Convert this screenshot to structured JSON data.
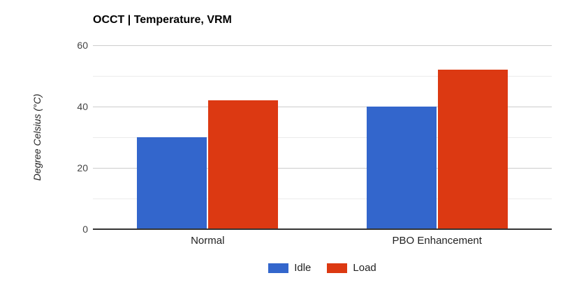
{
  "chart_data": {
    "type": "bar",
    "title": "OCCT | Temperature, VRM",
    "ylabel": "Degree Celsius (°C)",
    "categories": [
      "Normal",
      "PBO Enhancement"
    ],
    "series": [
      {
        "name": "Idle",
        "color": "#3366cc",
        "values": [
          30,
          40
        ]
      },
      {
        "name": "Load",
        "color": "#dc3912",
        "values": [
          42,
          52
        ]
      }
    ],
    "ylim": [
      0,
      60
    ],
    "ytick_labels": [
      "0",
      "20",
      "40",
      "60"
    ],
    "gridline_step": 10,
    "grid": true,
    "legend_position": "bottom",
    "colors": {
      "major_gridline": "#cccccc",
      "minor_gridline": "#ebebeb",
      "baseline": "#333333",
      "tick_text": "#444444",
      "label_text": "#222222"
    }
  }
}
